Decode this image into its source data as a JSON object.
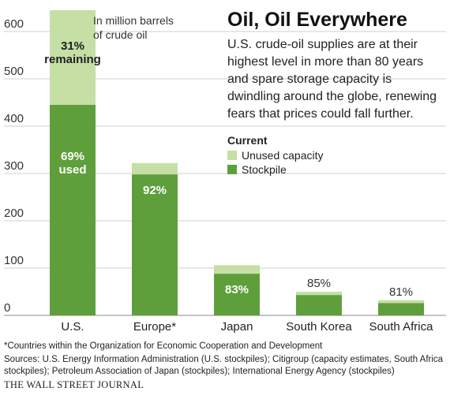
{
  "title": "Oil, Oil Everywhere",
  "subtitle": "U.S. crude-oil supplies are at their highest level in more than 80 years and spare storage capacity is dwindling around the globe, renewing fears that prices could fall further.",
  "legend": {
    "title": "Current",
    "items": [
      {
        "label": "Unused capacity",
        "color": "#c5dfa5"
      },
      {
        "label": "Stockpile",
        "color": "#5e9f3c"
      }
    ]
  },
  "colors": {
    "stockpile": "#5e9f3c",
    "unused": "#c5dfa5",
    "grid": "#cfcfcf",
    "axis": "#888888"
  },
  "chart_data": {
    "type": "bar",
    "stacked": true,
    "unit_note": "In million barrels of crude oil",
    "categories": [
      "U.S.",
      "Europe*",
      "Japan",
      "South Korea",
      "South Africa"
    ],
    "series": [
      {
        "name": "Stockpile",
        "values": [
          445,
          298,
          88,
          43,
          26
        ]
      },
      {
        "name": "Unused capacity",
        "values": [
          200,
          24,
          18,
          7,
          6
        ]
      }
    ],
    "labels": [
      {
        "used": "69%\nused",
        "unused": "31%\nremaining"
      },
      {
        "used": "92%"
      },
      {
        "used": "83%"
      },
      {
        "used": "85%"
      },
      {
        "used": "81%"
      }
    ],
    "yticks": [
      0,
      100,
      200,
      300,
      400,
      500,
      600
    ],
    "ylim": [
      0,
      650
    ],
    "grid": true
  },
  "footer": {
    "footnote": "*Countries within the Organization for Economic Cooperation and Development",
    "sources": "Sources: U.S. Energy Information Administration (U.S. stockpiles); Citigroup (capacity estimates, South Africa stockpiles); Petroleum Association of Japan (stockpiles); International Energy Agency (stockpiles)",
    "brand": "THE WALL STREET JOURNAL"
  }
}
